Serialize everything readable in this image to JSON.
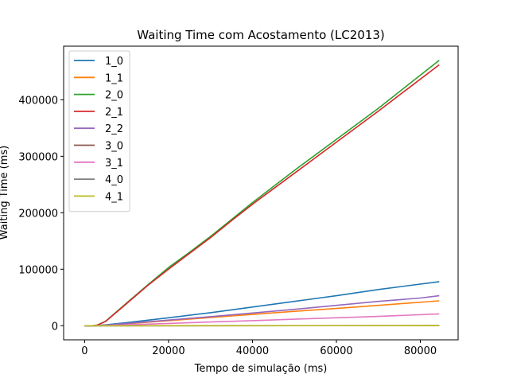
{
  "chart_data": {
    "type": "line",
    "title": "Waiting Time com Acostamento (LC2013)",
    "xlabel": "Tempo de simulação (ms)",
    "ylabel": "Waiting Time (ms)",
    "xlim": [
      -5000,
      89000
    ],
    "ylim": [
      -25000,
      495000
    ],
    "xticks": [
      0,
      20000,
      40000,
      60000,
      80000
    ],
    "yticks": [
      0,
      100000,
      200000,
      300000,
      400000
    ],
    "xtick_labels": [
      "0",
      "20000",
      "40000",
      "60000",
      "80000"
    ],
    "ytick_labels": [
      "0",
      "100000",
      "200000",
      "300000",
      "400000"
    ],
    "grid": false,
    "legend_position": "top-left",
    "series": [
      {
        "name": "1_0",
        "color": "#1f77b4",
        "points": [
          [
            0,
            0
          ],
          [
            2000,
            0
          ],
          [
            5000,
            1500
          ],
          [
            10000,
            5500
          ],
          [
            20000,
            14000
          ],
          [
            30000,
            23000
          ],
          [
            40000,
            33000
          ],
          [
            50000,
            43000
          ],
          [
            60000,
            53000
          ],
          [
            70000,
            64000
          ],
          [
            84500,
            78000
          ]
        ]
      },
      {
        "name": "1_1",
        "color": "#ff7f0e",
        "points": [
          [
            0,
            0
          ],
          [
            2000,
            0
          ],
          [
            5000,
            700
          ],
          [
            10000,
            3500
          ],
          [
            20000,
            9000
          ],
          [
            30000,
            14500
          ],
          [
            40000,
            20000
          ],
          [
            50000,
            25500
          ],
          [
            60000,
            30500
          ],
          [
            70000,
            36000
          ],
          [
            84500,
            44000
          ]
        ]
      },
      {
        "name": "2_0",
        "color": "#2ca02c",
        "points": [
          [
            0,
            0
          ],
          [
            2000,
            0
          ],
          [
            3000,
            1000
          ],
          [
            5000,
            8000
          ],
          [
            10000,
            40000
          ],
          [
            15000,
            72000
          ],
          [
            20000,
            103000
          ],
          [
            25000,
            130000
          ],
          [
            30000,
            158000
          ],
          [
            35000,
            188000
          ],
          [
            40000,
            218000
          ],
          [
            50000,
            275000
          ],
          [
            60000,
            330000
          ],
          [
            70000,
            385000
          ],
          [
            84500,
            470000
          ]
        ]
      },
      {
        "name": "2_1",
        "color": "#d62728",
        "points": [
          [
            0,
            0
          ],
          [
            2000,
            0
          ],
          [
            3000,
            1000
          ],
          [
            5000,
            7500
          ],
          [
            10000,
            39000
          ],
          [
            15000,
            71000
          ],
          [
            20000,
            100000
          ],
          [
            25000,
            128000
          ],
          [
            30000,
            156000
          ],
          [
            35000,
            186000
          ],
          [
            40000,
            215000
          ],
          [
            50000,
            270000
          ],
          [
            60000,
            325000
          ],
          [
            70000,
            380000
          ],
          [
            84500,
            462000
          ]
        ]
      },
      {
        "name": "2_2",
        "color": "#9467bd",
        "points": [
          [
            0,
            0
          ],
          [
            2000,
            0
          ],
          [
            5000,
            800
          ],
          [
            10000,
            4000
          ],
          [
            20000,
            10000
          ],
          [
            30000,
            16000
          ],
          [
            40000,
            22500
          ],
          [
            50000,
            29000
          ],
          [
            60000,
            36000
          ],
          [
            70000,
            43000
          ],
          [
            80000,
            49000
          ],
          [
            84500,
            53000
          ]
        ]
      },
      {
        "name": "3_0",
        "color": "#8c564b",
        "points": [
          [
            0,
            0
          ],
          [
            84500,
            200
          ]
        ]
      },
      {
        "name": "3_1",
        "color": "#e377c2",
        "points": [
          [
            0,
            0
          ],
          [
            2000,
            0
          ],
          [
            5000,
            300
          ],
          [
            10000,
            1500
          ],
          [
            20000,
            4000
          ],
          [
            30000,
            6500
          ],
          [
            40000,
            9000
          ],
          [
            50000,
            11500
          ],
          [
            60000,
            14000
          ],
          [
            70000,
            16500
          ],
          [
            84500,
            21000
          ]
        ]
      },
      {
        "name": "4_0",
        "color": "#7f7f7f",
        "points": [
          [
            0,
            0
          ],
          [
            84500,
            150
          ]
        ]
      },
      {
        "name": "4_1",
        "color": "#bcbd22",
        "points": [
          [
            0,
            0
          ],
          [
            84500,
            100
          ]
        ]
      }
    ]
  }
}
